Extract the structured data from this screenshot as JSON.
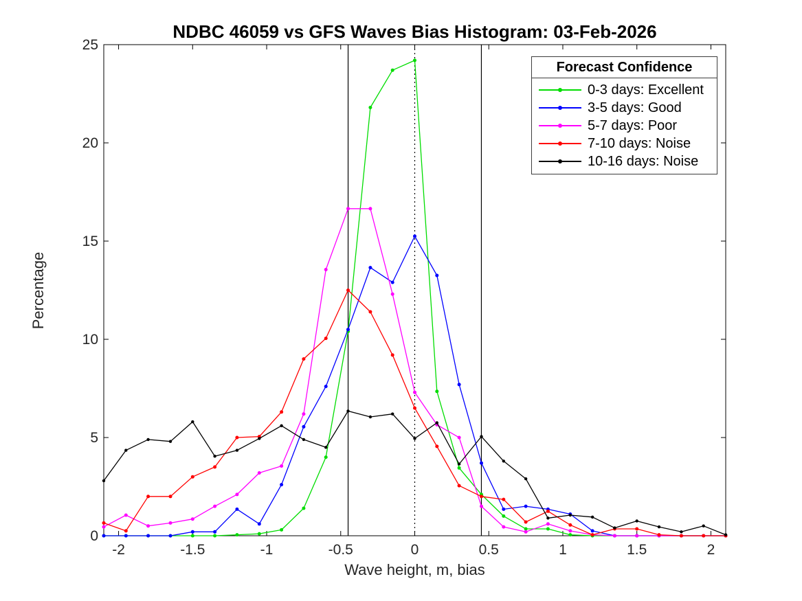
{
  "title": "NDBC 46059 vs GFS Waves Bias Histogram: 03-Feb-2026",
  "axes": {
    "xlabel": "Wave height, m, bias",
    "ylabel": "Percentage",
    "xlim": [
      -2.1,
      2.1
    ],
    "ylim": [
      0,
      25
    ],
    "xtick_values": [
      -2,
      -1.5,
      -1,
      -0.5,
      0,
      0.5,
      1,
      1.5,
      2
    ],
    "xtick_labels": [
      "-2",
      "-1.5",
      "-1",
      "-0.5",
      "0",
      "0.5",
      "1",
      "1.5",
      "2"
    ],
    "ytick_values": [
      0,
      5,
      10,
      15,
      20,
      25
    ],
    "ytick_labels": [
      "0",
      "5",
      "10",
      "15",
      "20",
      "25"
    ],
    "grid": false,
    "box": true
  },
  "legend": {
    "title": "Forecast Confidence",
    "position": "top-right-inside",
    "items": [
      {
        "label": "0-3 days: Excellent",
        "color": "#00dd00"
      },
      {
        "label": "3-5 days: Good",
        "color": "#0000ff"
      },
      {
        "label": "5-7 days: Poor",
        "color": "#ff00ff"
      },
      {
        "label": "7-10 days: Noise",
        "color": "#ff0000"
      },
      {
        "label": "10-16 days: Noise",
        "color": "#000000"
      }
    ]
  },
  "chart_data": {
    "type": "line",
    "title": "NDBC 46059 vs GFS Waves Bias Histogram: 03-Feb-2026",
    "xlabel": "Wave height, m, bias",
    "ylabel": "Percentage",
    "xlim": [
      -2.1,
      2.1
    ],
    "ylim": [
      0,
      25
    ],
    "marker": "point",
    "x": [
      -2.1,
      -1.95,
      -1.8,
      -1.65,
      -1.5,
      -1.35,
      -1.2,
      -1.05,
      -0.9,
      -0.75,
      -0.6,
      -0.45,
      -0.3,
      -0.15,
      0,
      0.15,
      0.3,
      0.45,
      0.6,
      0.75,
      0.9,
      1.05,
      1.2,
      1.35,
      1.5,
      1.65,
      1.8,
      1.95,
      2.1
    ],
    "series": [
      {
        "name": "0-3 days: Excellent",
        "color": "#00dd00",
        "values": [
          0,
          0,
          0,
          0,
          0,
          0,
          0.05,
          0.1,
          0.3,
          1.4,
          4.0,
          10.4,
          21.8,
          23.7,
          24.2,
          7.35,
          3.45,
          2.1,
          1.0,
          0.35,
          0.35,
          0.05,
          0,
          0,
          0,
          0,
          0,
          0,
          0
        ]
      },
      {
        "name": "3-5 days: Good",
        "color": "#0000ff",
        "values": [
          0,
          0,
          0,
          0,
          0.2,
          0.2,
          1.35,
          0.6,
          2.6,
          5.55,
          7.6,
          10.5,
          13.65,
          12.9,
          15.25,
          13.25,
          7.7,
          3.7,
          1.35,
          1.5,
          1.35,
          1.1,
          0.25,
          0,
          0,
          0,
          0,
          0,
          0
        ]
      },
      {
        "name": "5-7 days: Poor",
        "color": "#ff00ff",
        "values": [
          0.45,
          1.05,
          0.5,
          0.65,
          0.85,
          1.5,
          2.1,
          3.2,
          3.55,
          6.2,
          13.55,
          16.65,
          16.65,
          12.3,
          7.3,
          5.65,
          5.0,
          1.5,
          0.45,
          0.2,
          0.6,
          0.25,
          0.05,
          0,
          0,
          0,
          0,
          0,
          0
        ]
      },
      {
        "name": "7-10 days: Noise",
        "color": "#ff0000",
        "values": [
          0.65,
          0.25,
          2.0,
          2.0,
          3.0,
          3.5,
          5.0,
          5.05,
          6.3,
          9.0,
          10.05,
          12.5,
          11.4,
          9.2,
          6.5,
          4.55,
          2.55,
          2.0,
          1.85,
          0.7,
          1.25,
          0.55,
          0.05,
          0.35,
          0.35,
          0.05,
          0,
          0,
          0
        ]
      },
      {
        "name": "10-16 days: Noise",
        "color": "#000000",
        "values": [
          2.8,
          4.35,
          4.9,
          4.8,
          5.8,
          4.05,
          4.35,
          4.95,
          5.6,
          4.9,
          4.5,
          6.35,
          6.05,
          6.2,
          4.95,
          5.75,
          3.65,
          5.05,
          3.8,
          2.9,
          0.9,
          1.05,
          0.95,
          0.4,
          0.75,
          0.45,
          0.2,
          0.5,
          0.05
        ]
      }
    ],
    "reference_lines": {
      "solid_x": [
        -0.45,
        0.45
      ],
      "dotted_x": [
        0
      ]
    },
    "legend_position": "top-right-inside"
  }
}
